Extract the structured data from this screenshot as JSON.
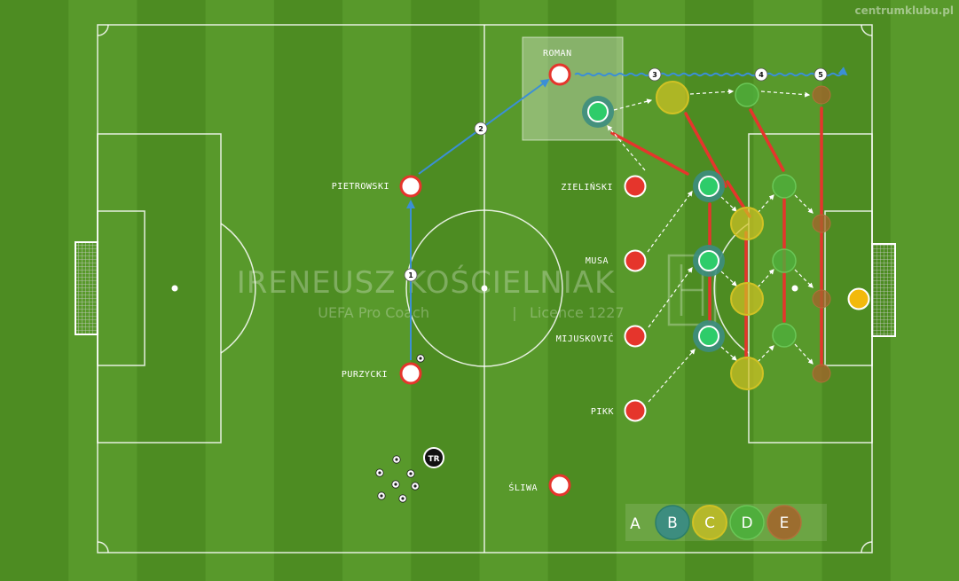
{
  "site_watermark": "centrumklubu.pl",
  "coach_watermark": {
    "name": "IRENEUSZ KOŚCIELNIAK",
    "subtitle_left": "UEFA Pro Coach",
    "subtitle_sep": "|",
    "subtitle_right": "Licence 1227"
  },
  "colors": {
    "player_red": "#e5352c",
    "player_white": "#ffffff",
    "zone_b": "#3aa45a",
    "zone_c": "#d1c224",
    "zone_d": "#4fae3c",
    "zone_e": "#a5632c",
    "pass_arrow": "#3b8fd6",
    "trainer": "#111111"
  },
  "players": [
    {
      "id": "roman",
      "label": "ROMAN",
      "type": "white"
    },
    {
      "id": "pietrowski",
      "label": "PIETROWSKI",
      "type": "white"
    },
    {
      "id": "purzycki",
      "label": "PURZYCKI",
      "type": "white"
    },
    {
      "id": "sliwa",
      "label": "ŚLIWA",
      "type": "white"
    },
    {
      "id": "zielinski",
      "label": "ZIELIŃSKI",
      "type": "red"
    },
    {
      "id": "musa",
      "label": "MUSA",
      "type": "red"
    },
    {
      "id": "mijuskovic",
      "label": "MIJUSKOVIĆ",
      "type": "red"
    },
    {
      "id": "pikk",
      "label": "PIKK",
      "type": "red"
    }
  ],
  "sequence_numbers": [
    "1",
    "2",
    "3",
    "4",
    "5"
  ],
  "trainer_label": "TR",
  "legend": {
    "a": "A",
    "b": "B",
    "c": "C",
    "d": "D",
    "e": "E"
  }
}
